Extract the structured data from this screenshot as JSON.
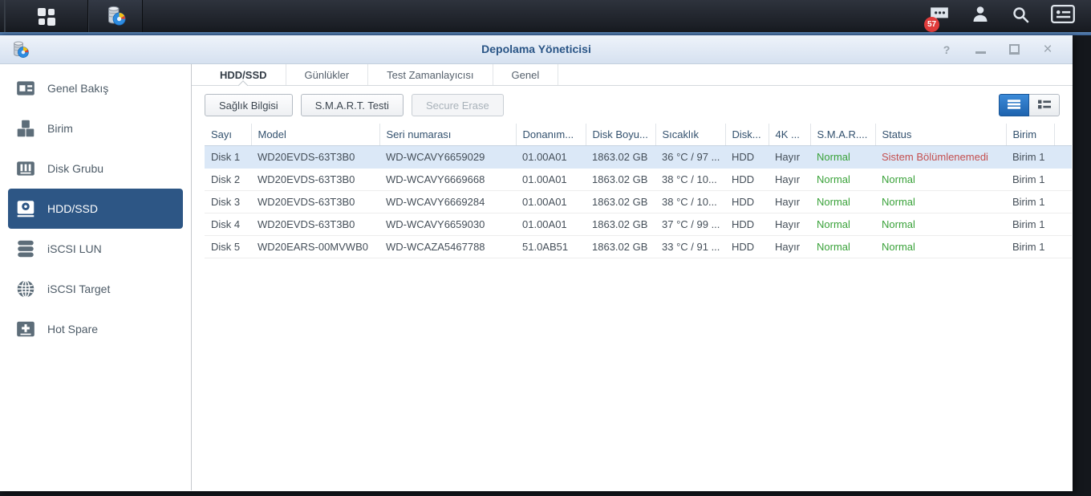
{
  "taskbar": {
    "main_menu_icon": "main-menu-icon",
    "app_icon": "storage-manager-icon",
    "notification_badge": "57",
    "right_icons": [
      "chat-icon",
      "user-icon",
      "search-icon",
      "widgets-icon"
    ]
  },
  "window": {
    "title": "Depolama Yöneticisi",
    "icon": "storage-manager-icon",
    "controls": {
      "help": "?",
      "close": "×"
    }
  },
  "sidebar": {
    "items": [
      {
        "label": "Genel Bakış",
        "icon": "overview-icon",
        "active": false
      },
      {
        "label": "Birim",
        "icon": "volume-icon",
        "active": false
      },
      {
        "label": "Disk Grubu",
        "icon": "disk-group-icon",
        "active": false
      },
      {
        "label": "HDD/SSD",
        "icon": "hdd-icon",
        "active": true
      },
      {
        "label": "iSCSI LUN",
        "icon": "iscsi-lun-icon",
        "active": false
      },
      {
        "label": "iSCSI Target",
        "icon": "iscsi-target-icon",
        "active": false
      },
      {
        "label": "Hot Spare",
        "icon": "hot-spare-icon",
        "active": false
      }
    ]
  },
  "tabs": [
    {
      "label": "HDD/SSD",
      "active": true
    },
    {
      "label": "Günlükler",
      "active": false
    },
    {
      "label": "Test Zamanlayıcısı",
      "active": false
    },
    {
      "label": "Genel",
      "active": false
    }
  ],
  "toolbar": {
    "buttons": [
      {
        "label": "Sağlık Bilgisi",
        "disabled": false
      },
      {
        "label": "S.M.A.R.T. Testi",
        "disabled": false
      },
      {
        "label": "Secure Erase",
        "disabled": true
      }
    ],
    "view_modes": [
      {
        "name": "list-view",
        "active": true
      },
      {
        "name": "detail-view",
        "active": false
      }
    ]
  },
  "table": {
    "columns": [
      "Sayı",
      "Model",
      "Seri numarası",
      "Donanım...",
      "Disk Boyu...",
      "Sıcaklık",
      "Disk...",
      "4K ...",
      "S.M.A.R....",
      "Status",
      "Birim"
    ],
    "rows": [
      {
        "cells": [
          "Disk 1",
          "WD20EVDS-63T3B0",
          "WD-WCAVY6659029",
          "01.00A01",
          "1863.02 GB",
          "36 °C / 97 ...",
          "HDD",
          "Hayır",
          "Normal",
          "Sistem Bölümlenemedi",
          "Birim 1"
        ],
        "status_kind": "error",
        "selected": true
      },
      {
        "cells": [
          "Disk 2",
          "WD20EVDS-63T3B0",
          "WD-WCAVY6669668",
          "01.00A01",
          "1863.02 GB",
          "38 °C / 10...",
          "HDD",
          "Hayır",
          "Normal",
          "Normal",
          "Birim 1"
        ],
        "status_kind": "ok",
        "selected": false
      },
      {
        "cells": [
          "Disk 3",
          "WD20EVDS-63T3B0",
          "WD-WCAVY6669284",
          "01.00A01",
          "1863.02 GB",
          "38 °C / 10...",
          "HDD",
          "Hayır",
          "Normal",
          "Normal",
          "Birim 1"
        ],
        "status_kind": "ok",
        "selected": false
      },
      {
        "cells": [
          "Disk 4",
          "WD20EVDS-63T3B0",
          "WD-WCAVY6659030",
          "01.00A01",
          "1863.02 GB",
          "37 °C / 99 ...",
          "HDD",
          "Hayır",
          "Normal",
          "Normal",
          "Birim 1"
        ],
        "status_kind": "ok",
        "selected": false
      },
      {
        "cells": [
          "Disk 5",
          "WD20EARS-00MVWB0",
          "WD-WCAZA5467788",
          "51.0AB51",
          "1863.02 GB",
          "33 °C / 91 ...",
          "HDD",
          "Hayır",
          "Normal",
          "Normal",
          "Birim 1"
        ],
        "status_kind": "ok",
        "selected": false
      }
    ]
  },
  "colors": {
    "ok_green": "#3aa23a",
    "error_red": "#c45050",
    "sidebar_active_blue": "#2d5685",
    "selected_row_blue": "#dbe8f7",
    "title_text_blue": "#2a5586"
  }
}
